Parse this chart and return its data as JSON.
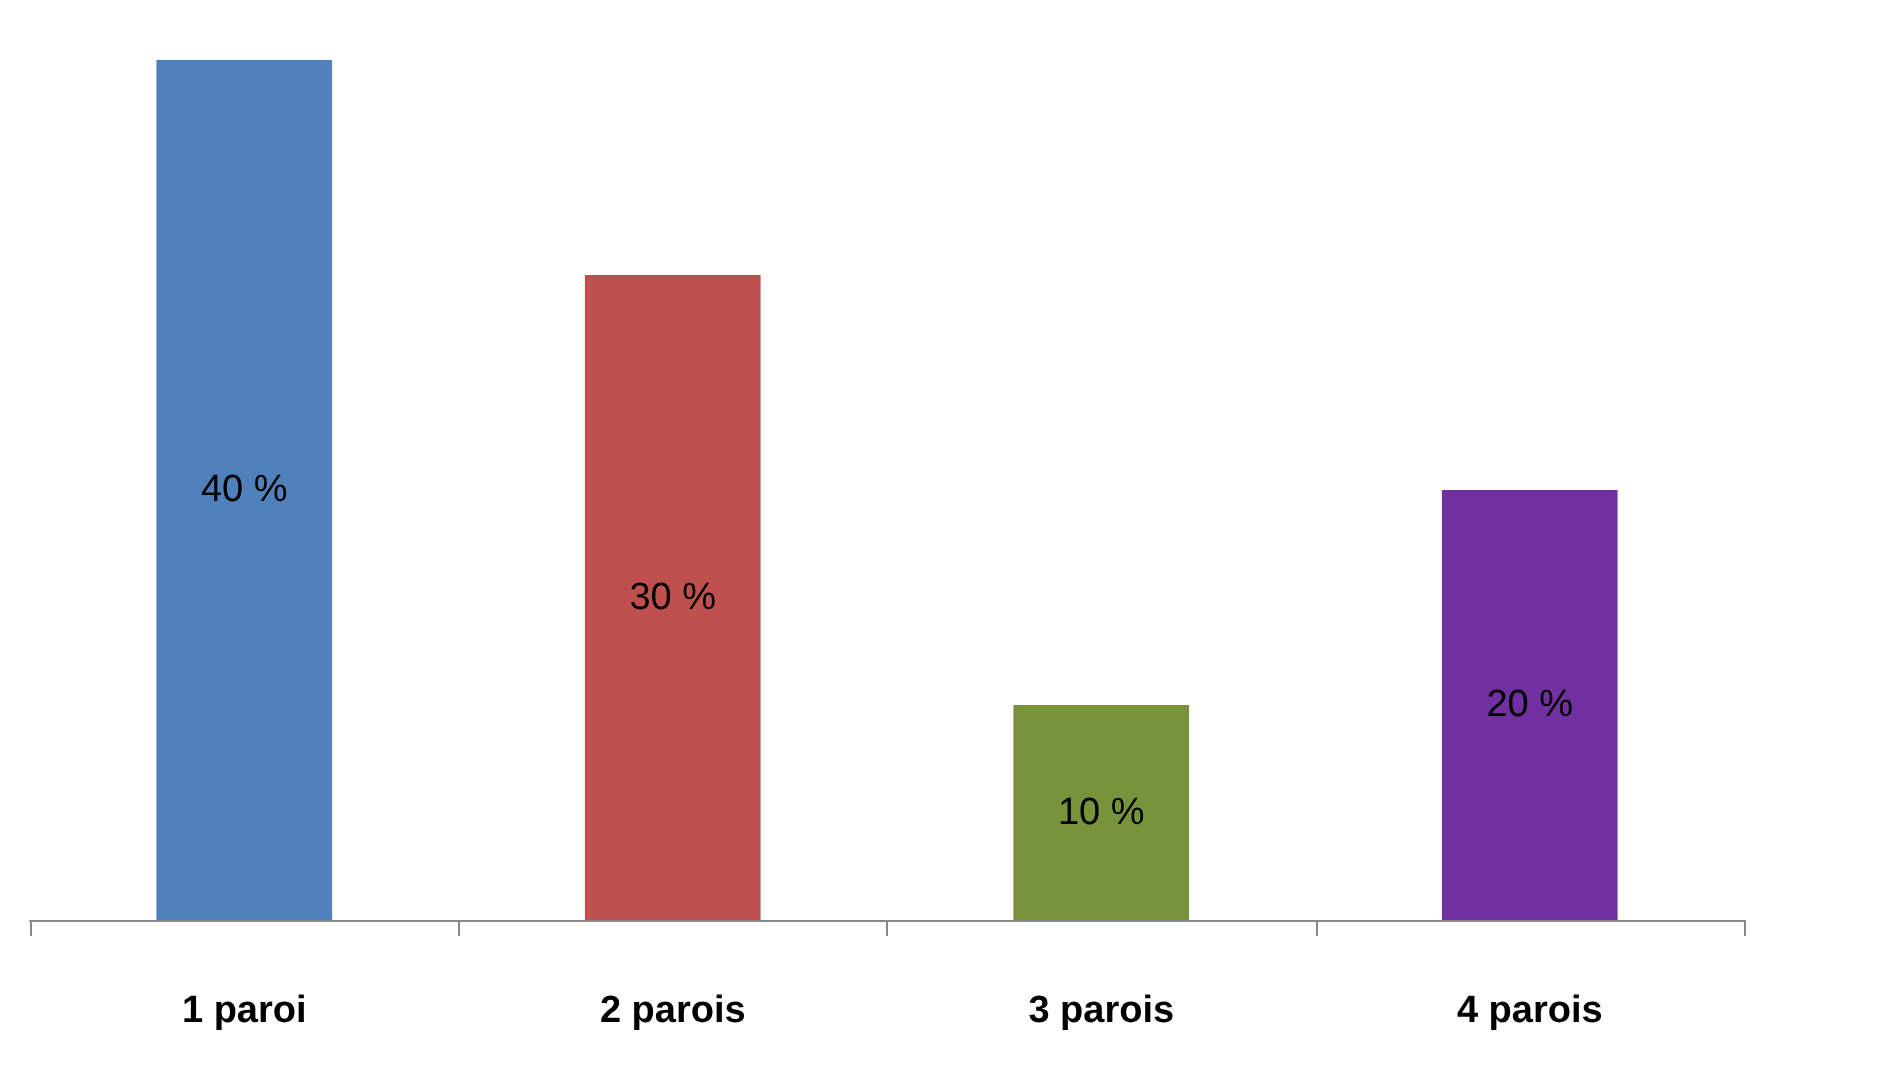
{
  "chart_data": {
    "type": "bar",
    "categories": [
      "1 paroi",
      "2 parois",
      "3 parois",
      "4 parois"
    ],
    "values": [
      40,
      30,
      10,
      20
    ],
    "colors": [
      "#4f81bd",
      "#c0504d",
      "#77933c",
      "#7030a0"
    ],
    "value_labels": [
      "40 %",
      "30 %",
      "10 %",
      "20 %"
    ]
  }
}
